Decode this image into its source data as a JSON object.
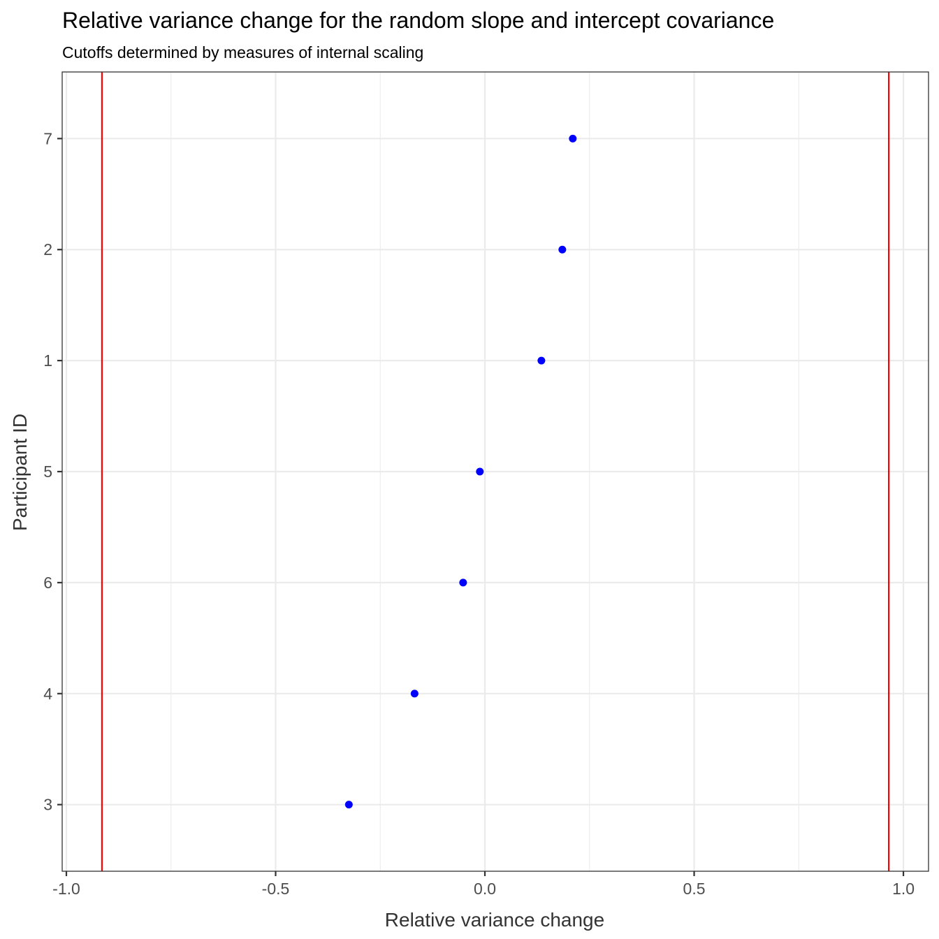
{
  "chart_data": {
    "type": "scatter",
    "title": "Relative variance change for the random slope and intercept covariance",
    "subtitle": "Cutoffs determined by measures of internal scaling",
    "xlabel": "Relative variance change",
    "ylabel": "Participant ID",
    "xlim": [
      -1.01,
      1.06
    ],
    "x_ticks": [
      -1.0,
      -0.5,
      0.0,
      0.5,
      1.0
    ],
    "x_tick_labels": [
      "-1.0",
      "-0.5",
      "0.0",
      "0.5",
      "1.0"
    ],
    "y_categories": [
      "3",
      "4",
      "6",
      "5",
      "1",
      "2",
      "7"
    ],
    "points": [
      {
        "participant": "7",
        "x": 0.21
      },
      {
        "participant": "2",
        "x": 0.185
      },
      {
        "participant": "1",
        "x": 0.135
      },
      {
        "participant": "5",
        "x": -0.012
      },
      {
        "participant": "6",
        "x": -0.052
      },
      {
        "participant": "4",
        "x": -0.168
      },
      {
        "participant": "3",
        "x": -0.325
      }
    ],
    "cutoffs": [
      -0.915,
      0.965
    ],
    "point_color": "#0000ff",
    "cutoff_color": "#ff0000",
    "grid": true,
    "theme": "bw"
  }
}
